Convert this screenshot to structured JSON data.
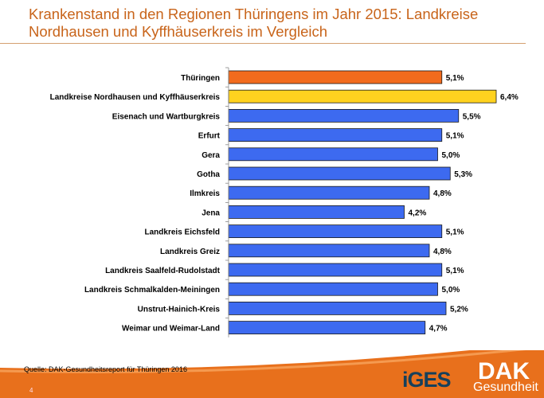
{
  "title": "Krankenstand in den Regionen Thüringens im Jahr 2015: Landkreise Nordhausen und Kyffhäuserkreis im Vergleich",
  "source": "Quelle: DAK-Gesundheitsreport für Thüringen 2016",
  "page_number": "4",
  "logos": {
    "iges": "iGES",
    "dak": "DAK",
    "dak_sub": "Gesundheit"
  },
  "colors": {
    "title": "#c8641a",
    "thueringen": "#f26b1d",
    "highlight": "#ffd21f",
    "default": "#3d6af0"
  },
  "chart_data": {
    "type": "bar",
    "orientation": "horizontal",
    "categories": [
      "Thüringen",
      "Landkreise Nordhausen und Kyffhäuserkreis",
      "Eisenach und Wartburgkreis",
      "Erfurt",
      "Gera",
      "Gotha",
      "Ilmkreis",
      "Jena",
      "Landkreis Eichsfeld",
      "Landkreis Greiz",
      "Landkreis Saalfeld-Rudolstadt",
      "Landkreis Schmalkalden-Meiningen",
      "Unstrut-Hainich-Kreis",
      "Weimar und Weimar-Land"
    ],
    "values": [
      5.1,
      6.4,
      5.5,
      5.1,
      5.0,
      5.3,
      4.8,
      4.2,
      5.1,
      4.8,
      5.1,
      5.0,
      5.2,
      4.7
    ],
    "labels": [
      "5,1%",
      "6,4%",
      "5,5%",
      "5,1%",
      "5,0%",
      "5,3%",
      "4,8%",
      "4,2%",
      "5,1%",
      "4,8%",
      "5,1%",
      "5,0%",
      "5,2%",
      "4,7%"
    ],
    "bar_colors": [
      "#f26b1d",
      "#ffd21f",
      "#3d6af0",
      "#3d6af0",
      "#3d6af0",
      "#3d6af0",
      "#3d6af0",
      "#3d6af0",
      "#3d6af0",
      "#3d6af0",
      "#3d6af0",
      "#3d6af0",
      "#3d6af0",
      "#3d6af0"
    ],
    "xlim": [
      0,
      7
    ],
    "grid": false
  }
}
